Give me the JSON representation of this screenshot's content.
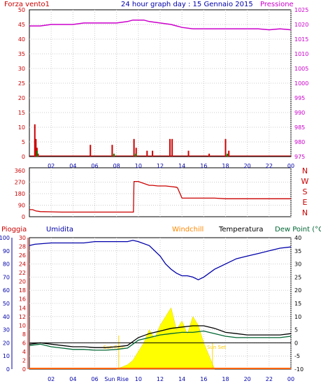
{
  "header": {
    "wind_label": "Forza vento1",
    "title": "24 hour graph day : 15 Gennaio 2015",
    "pressure_label": "Pressione"
  },
  "bottom_header": {
    "rain_label": "Pioggia",
    "humidity_label": "Umidita",
    "windchill_label": "Windchill",
    "temperature_label": "Temperatura",
    "dewpoint_label": "Dew Point (°C"
  },
  "x_ticks": [
    "02",
    "04",
    "06",
    "08",
    "10",
    "12",
    "14",
    "16",
    "18",
    "20",
    "22",
    "00"
  ],
  "x_ticks_bottom": [
    "02",
    "04",
    "06",
    "Sun Rise",
    "10",
    "12",
    "14",
    "16",
    "18",
    "20",
    "22",
    "00"
  ],
  "colors": {
    "wind": "#cc0000",
    "pressure": "#cc00cc",
    "direction": "#cc0000",
    "humidity": "#0000aa",
    "temperature": "#000000",
    "dewpoint": "#006633",
    "windchill": "#ff8800",
    "solar": "#ffff00",
    "rain": "#ff0000",
    "frame": "#000000",
    "grid": "#cccccc"
  },
  "chart_data": [
    {
      "type": "line",
      "name": "wind-pressure",
      "x_range": [
        0,
        24
      ],
      "ylim_left": [
        0,
        50
      ],
      "yticks_left": [
        0,
        5,
        10,
        15,
        20,
        25,
        30,
        35,
        40,
        45,
        50
      ],
      "ylim_right": [
        975,
        1025
      ],
      "yticks_right": [
        975,
        980,
        985,
        990,
        995,
        1000,
        1005,
        1010,
        1015,
        1020,
        1025
      ],
      "grid": true,
      "pressure": {
        "x": [
          0,
          1,
          2,
          3,
          4,
          5,
          6,
          7,
          8,
          9,
          9.5,
          10,
          10.5,
          11,
          12,
          13,
          14,
          15,
          16,
          17,
          18,
          19,
          20,
          21,
          22,
          23,
          24
        ],
        "values": [
          1019.5,
          1019.5,
          1020,
          1020,
          1020,
          1020.5,
          1020.5,
          1020.5,
          1020.5,
          1021,
          1021.5,
          1021.5,
          1021.5,
          1021,
          1020.5,
          1020,
          1019,
          1018.5,
          1018.5,
          1018.5,
          1018.5,
          1018.5,
          1018.5,
          1018.5,
          1018.2,
          1018.5,
          1018.2
        ]
      },
      "wind_bars": [
        {
          "x": 0.5,
          "value": 11
        },
        {
          "x": 0.6,
          "value": 6
        },
        {
          "x": 0.7,
          "value": 3
        },
        {
          "x": 0.8,
          "value": 1
        },
        {
          "x": 5.6,
          "value": 4
        },
        {
          "x": 7.6,
          "value": 4
        },
        {
          "x": 9.6,
          "value": 6
        },
        {
          "x": 9.8,
          "value": 3
        },
        {
          "x": 10.8,
          "value": 2
        },
        {
          "x": 11.3,
          "value": 2
        },
        {
          "x": 12.9,
          "value": 6
        },
        {
          "x": 13.1,
          "value": 6
        },
        {
          "x": 14.6,
          "value": 2
        },
        {
          "x": 16.5,
          "value": 1
        },
        {
          "x": 18,
          "value": 6
        },
        {
          "x": 18.3,
          "value": 2
        }
      ],
      "gust_bars": [
        {
          "x": 0.65,
          "value": 2
        },
        {
          "x": 7.7,
          "value": 1
        },
        {
          "x": 9.7,
          "value": 1
        },
        {
          "x": 18.1,
          "value": 1
        }
      ]
    },
    {
      "type": "line",
      "name": "wind-direction",
      "x_range": [
        0,
        24
      ],
      "ylim": [
        0,
        360
      ],
      "yticks": [
        0,
        90,
        180,
        270,
        360
      ],
      "compass_labels": [
        "N",
        "W",
        "S",
        "E",
        "N"
      ],
      "x": [
        0,
        0.3,
        0.6,
        1,
        2,
        3,
        4,
        5,
        6,
        7,
        8,
        9,
        9.55,
        9.6,
        10,
        11,
        11.3,
        11.8,
        12,
        12.5,
        13,
        13.5,
        13.6,
        14,
        15,
        16,
        17,
        18,
        20,
        22,
        24
      ],
      "values": [
        55,
        55,
        45,
        40,
        38,
        36,
        36,
        36,
        36,
        36,
        36,
        36,
        36,
        275,
        275,
        245,
        245,
        240,
        240,
        240,
        235,
        230,
        225,
        145,
        145,
        145,
        145,
        140,
        140,
        140,
        140
      ]
    },
    {
      "type": "line",
      "name": "temperature-humidity",
      "x_range": [
        0,
        24
      ],
      "ylim_humidity": [
        0,
        100
      ],
      "yticks_humidity": [
        0,
        10,
        20,
        30,
        40,
        50,
        60,
        70,
        80,
        90,
        100
      ],
      "ylim_mid": [
        0,
        30
      ],
      "yticks_mid": [
        0,
        2,
        4,
        6,
        8,
        10,
        12,
        14,
        16,
        18,
        20,
        22,
        24,
        26,
        28,
        30
      ],
      "ylim_right": [
        -10,
        40
      ],
      "yticks_right": [
        -10,
        -5,
        0,
        5,
        10,
        15,
        20,
        25,
        30,
        35,
        40
      ],
      "sunrise_label": "Sun Rise",
      "sunset_label": "Sun Set",
      "humidity": {
        "x": [
          0,
          0.5,
          2,
          3,
          4,
          5,
          6,
          7,
          8,
          9,
          9.5,
          10,
          11,
          12,
          12.5,
          13,
          13.5,
          14,
          14.5,
          15,
          15.5,
          16,
          17,
          18,
          19,
          20,
          21,
          22,
          23,
          24
        ],
        "values": [
          94,
          95,
          96,
          96,
          96,
          96,
          97,
          97,
          97,
          97,
          98,
          97,
          94,
          86,
          80,
          76,
          73,
          71,
          71,
          70,
          68,
          70,
          76,
          80,
          84,
          86,
          88,
          90,
          92,
          93
        ]
      },
      "temperature": {
        "x": [
          0,
          1,
          2,
          3,
          4,
          5,
          6,
          7,
          8,
          9,
          9.5,
          10,
          11,
          12,
          13,
          14,
          15,
          16,
          17,
          18,
          19,
          20,
          21,
          22,
          23,
          24
        ],
        "values": [
          -0.5,
          0,
          -0.5,
          -1,
          -1.5,
          -1.5,
          -1.8,
          -1.8,
          -1.5,
          -1,
          0.5,
          2,
          3.5,
          4.5,
          5.5,
          6,
          6.5,
          6.5,
          5.5,
          4,
          3.5,
          3,
          3,
          3,
          3,
          3.5
        ]
      },
      "dewpoint": {
        "x": [
          0,
          1,
          2,
          3,
          4,
          5,
          6,
          7,
          8,
          9,
          9.5,
          10,
          11,
          12,
          13,
          14,
          15,
          16,
          17,
          18,
          19,
          20,
          21,
          22,
          23,
          24
        ],
        "values": [
          -1,
          -0.5,
          -1.5,
          -2,
          -2.5,
          -2.5,
          -2.8,
          -2.8,
          -2.5,
          -2,
          -0.5,
          1,
          2,
          3,
          3.5,
          4,
          4,
          4.5,
          3.5,
          2.5,
          2,
          2,
          2,
          2,
          2,
          2.5
        ]
      },
      "zero_line": 0,
      "solar": {
        "x": [
          8,
          8.5,
          9,
          9.5,
          10,
          10.5,
          11,
          11.5,
          12,
          12.5,
          13,
          13.5,
          14,
          14.5,
          15,
          15.5,
          16,
          16.5,
          17
        ],
        "values": [
          0,
          0.5,
          1,
          2,
          4,
          6,
          9,
          7,
          10,
          12,
          14,
          9,
          11,
          8,
          12,
          10,
          6,
          3,
          0
        ]
      },
      "rain": {
        "x": [
          0,
          24
        ],
        "values": [
          0,
          0
        ]
      }
    }
  ]
}
